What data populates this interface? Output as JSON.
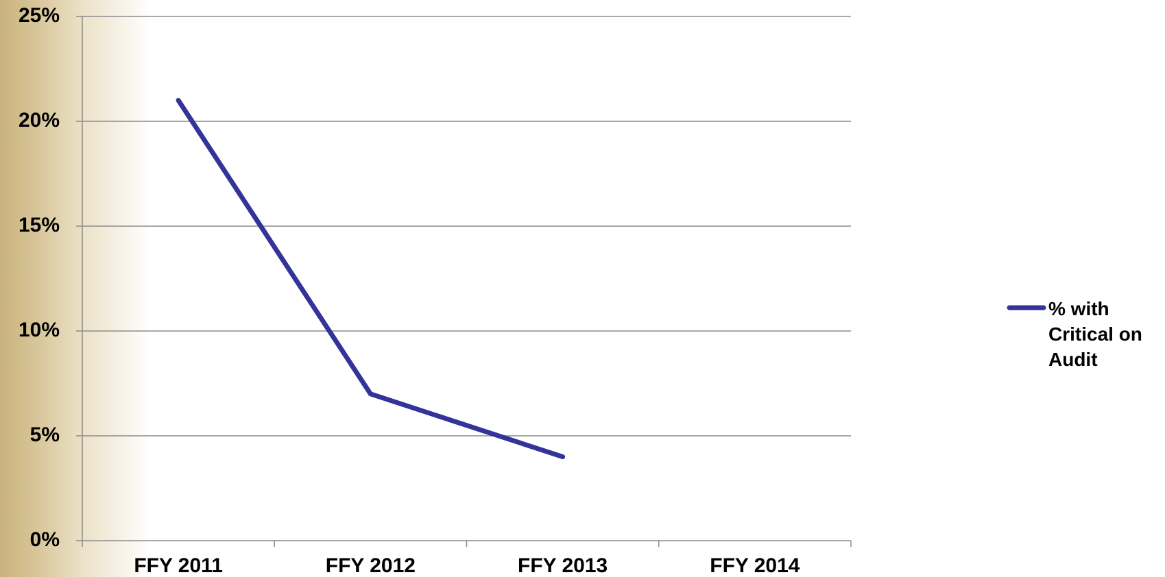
{
  "chart_data": {
    "type": "line",
    "categories": [
      "FFY 2011",
      "FFY 2012",
      "FFY 2013",
      "FFY 2014"
    ],
    "series": [
      {
        "name": "% with Critical on Audit",
        "color": "#333399",
        "values": [
          21,
          7,
          4,
          null
        ]
      }
    ],
    "ylim": [
      0,
      25
    ],
    "yticks": [
      {
        "value": 0,
        "label": "0%"
      },
      {
        "value": 5,
        "label": "5%"
      },
      {
        "value": 10,
        "label": "10%"
      },
      {
        "value": 15,
        "label": "15%"
      },
      {
        "value": 20,
        "label": "20%"
      },
      {
        "value": 25,
        "label": "25%"
      }
    ],
    "grid": true,
    "legend": "right"
  }
}
